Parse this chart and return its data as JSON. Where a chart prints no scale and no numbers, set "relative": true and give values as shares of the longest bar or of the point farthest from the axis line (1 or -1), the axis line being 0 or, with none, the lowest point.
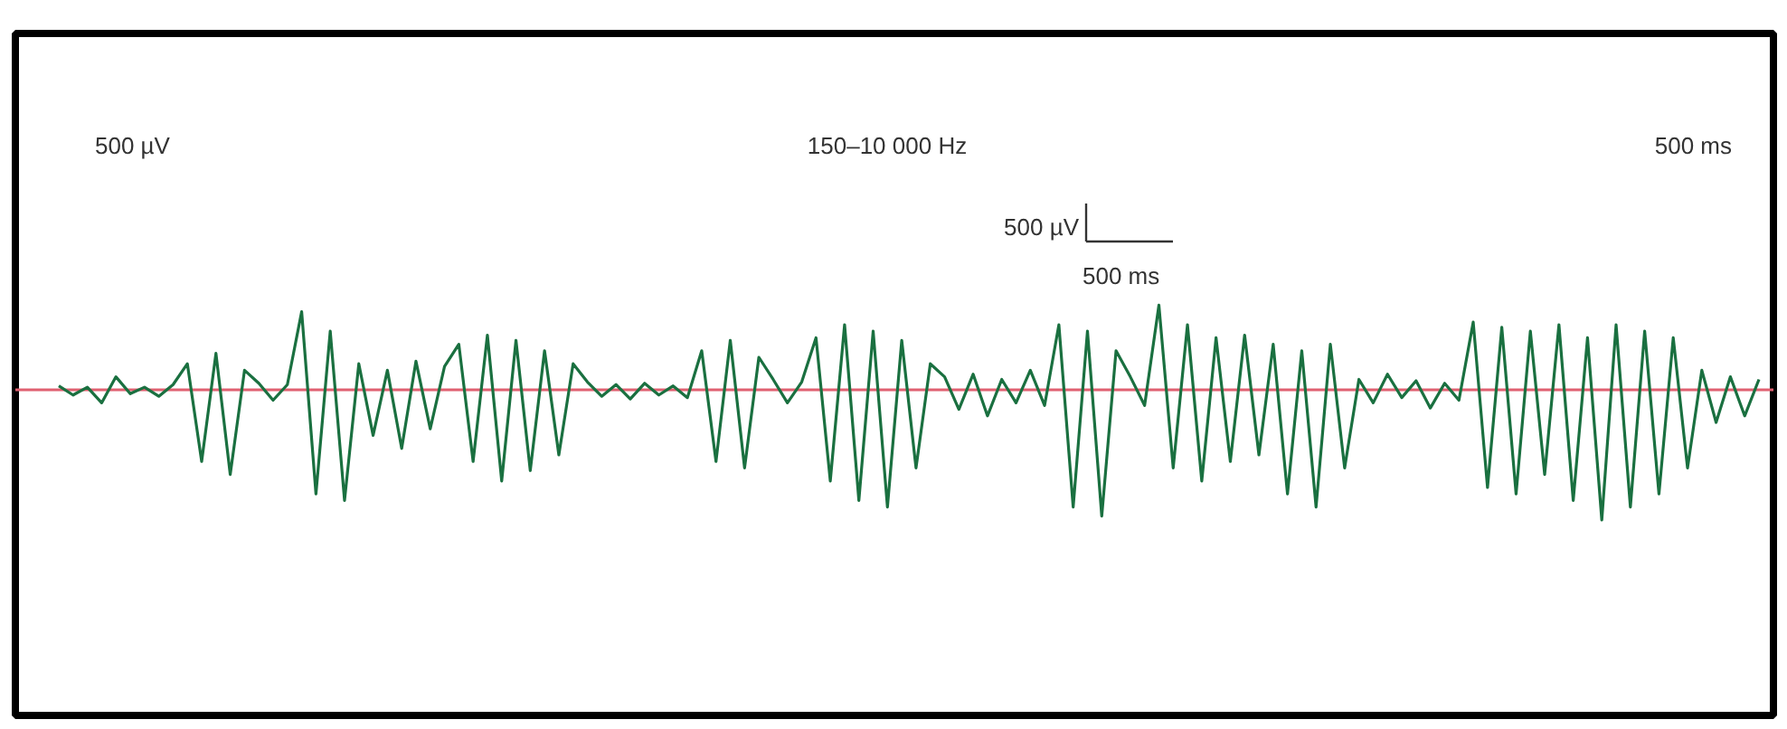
{
  "chart_data": {
    "type": "line",
    "relative": true,
    "categories": [
      null,
      null,
      null,
      null,
      null,
      null,
      null,
      null,
      null,
      null,
      null,
      null,
      null,
      null,
      null,
      null,
      null,
      null,
      null,
      null,
      null,
      null,
      null,
      null,
      null,
      null,
      null,
      null,
      null,
      null,
      null,
      null,
      null,
      null,
      null,
      null,
      null,
      null,
      null,
      null,
      null,
      null,
      null,
      null,
      null,
      null,
      null,
      null,
      null,
      null,
      null,
      null,
      null,
      null,
      null,
      null,
      null,
      null,
      null,
      null,
      null,
      null,
      null,
      null,
      null,
      null,
      null,
      null,
      null,
      null,
      null,
      null,
      null,
      null,
      null,
      null,
      null,
      null,
      null,
      null,
      null,
      null,
      null,
      null,
      null,
      null,
      null,
      null,
      null,
      null,
      null,
      null,
      null,
      null,
      null,
      null,
      null,
      null,
      null,
      null,
      null,
      null,
      null,
      null,
      null,
      null,
      null,
      null,
      null,
      null,
      null,
      null,
      null,
      null,
      null,
      null,
      null,
      null,
      null,
      null
    ],
    "series": [
      {
        "color": "#1a7040",
        "values": [
          0.03,
          -0.04,
          0.02,
          -0.1,
          0.1,
          -0.03,
          0.02,
          -0.05,
          0.04,
          0.2,
          -0.55,
          0.28,
          -0.65,
          0.15,
          0.05,
          -0.08,
          0.04,
          0.6,
          -0.8,
          0.45,
          -0.85,
          0.2,
          -0.35,
          0.15,
          -0.45,
          0.22,
          -0.3,
          0.18,
          0.35,
          -0.55,
          0.42,
          -0.7,
          0.38,
          -0.62,
          0.3,
          -0.5,
          0.2,
          0.06,
          -0.05,
          0.04,
          -0.07,
          0.05,
          -0.04,
          0.03,
          -0.06,
          0.3,
          -0.55,
          0.38,
          -0.6,
          0.25,
          0.08,
          -0.1,
          0.06,
          0.4,
          -0.7,
          0.5,
          -0.85,
          0.45,
          -0.9,
          0.38,
          -0.6,
          0.2,
          0.1,
          -0.15,
          0.12,
          -0.2,
          0.08,
          -0.1,
          0.15,
          -0.12,
          0.5,
          -0.9,
          0.45,
          -0.97,
          0.3,
          0.1,
          -0.12,
          0.65,
          -0.6,
          0.5,
          -0.7,
          0.4,
          -0.55,
          0.42,
          -0.5,
          0.35,
          -0.8,
          0.3,
          -0.9,
          0.35,
          -0.6,
          0.08,
          -0.1,
          0.12,
          -0.06,
          0.07,
          -0.14,
          0.05,
          -0.08,
          0.52,
          -0.75,
          0.48,
          -0.8,
          0.45,
          -0.65,
          0.5,
          -0.85,
          0.4,
          -1,
          0.5,
          -0.9,
          0.45,
          -0.8,
          0.4,
          -0.6,
          0.15,
          -0.25,
          0.1,
          -0.2,
          0.08
        ]
      }
    ],
    "ref_lines": [
      {
        "axis": "y",
        "value": 0,
        "color": "#e06070"
      }
    ],
    "annotations": [
      "500 µV",
      "150–10 000 Hz",
      "500 ms",
      "500 µV",
      "500 ms"
    ],
    "grid": false,
    "marker": "none",
    "line_style": "solid"
  }
}
